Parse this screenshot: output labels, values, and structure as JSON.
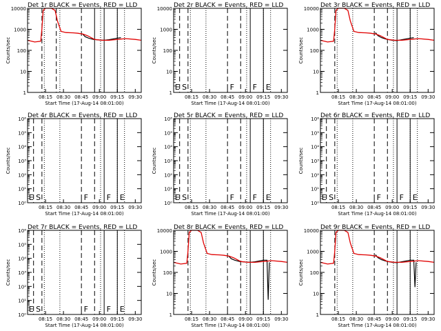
{
  "figure": {
    "title": "",
    "background": "#ffffff"
  },
  "colors": {
    "events": "#000000",
    "lld": "#e00000",
    "axes": "#000000"
  },
  "chart_data": [
    {
      "type": "line",
      "title": "Det 1r BLACK = Events, RED = LLD",
      "xlabel": "Start Time (17-Aug-14 08:01:00)",
      "ylabel": "Counts/sec",
      "scale": "log",
      "ylim": [
        1,
        10000
      ],
      "y_ticks": [
        "1",
        "10",
        "100",
        "1000",
        "10000"
      ],
      "x_ticks": [
        "08:15",
        "08:30",
        "08:45",
        "09:00",
        "09:15",
        "09:30"
      ],
      "xlim": [
        480,
        575
      ],
      "vlines_dashed": [
        492,
        504,
        525
      ],
      "vlines_dotted": [
        494,
        507,
        541,
        555,
        561
      ],
      "vlines_solid": [
        536,
        544,
        555
      ],
      "markers": [],
      "series": [
        {
          "name": "Events",
          "color": "#000000",
          "x": [
            526,
            528,
            531,
            535,
            540,
            544,
            548,
            555,
            558
          ],
          "y": [
            600,
            450,
            380,
            330,
            310,
            300,
            320,
            380,
            400
          ]
        },
        {
          "name": "LLD",
          "color": "#e00000",
          "x": [
            480,
            486,
            491,
            492,
            493,
            495,
            500,
            503,
            505,
            508,
            512,
            518,
            522,
            526,
            530,
            536,
            542,
            548,
            555,
            562,
            570,
            575
          ],
          "y": [
            300,
            250,
            270,
            1000,
            8000,
            10000,
            10000,
            8000,
            2500,
            800,
            700,
            680,
            650,
            600,
            500,
            330,
            300,
            300,
            330,
            360,
            330,
            300
          ]
        }
      ]
    },
    {
      "type": "line",
      "title": "Det 2r BLACK = Events, RED = LLD",
      "xlabel": "Start Time (17-Aug-14 08:01:00)",
      "ylabel": "Counts/sec",
      "scale": "log",
      "ylim": [
        1,
        10000
      ],
      "y_ticks": [
        "1",
        "10",
        "100",
        "1000",
        "10000"
      ],
      "x_ticks": [
        "08:15",
        "08:30",
        "08:45",
        "09:00",
        "09:15",
        "09:30"
      ],
      "xlim": [
        480,
        575
      ],
      "vlines_dashed": [
        485,
        492,
        525,
        536
      ],
      "vlines_dotted": [
        494,
        507,
        541,
        555,
        561
      ],
      "vlines_solid": [
        544,
        555
      ],
      "markers": [
        {
          "label": "E",
          "x": 481
        },
        {
          "label": "S",
          "x": 487
        },
        {
          "label": "F",
          "x": 527
        },
        {
          "label": "F",
          "x": 546
        },
        {
          "label": "E",
          "x": 557
        }
      ],
      "series": []
    },
    {
      "type": "line",
      "title": "Det 3r BLACK = Events, RED = LLD",
      "xlabel": "Start Time (17-Aug-14 08:01:00)",
      "ylabel": "Counts/sec",
      "scale": "log",
      "ylim": [
        1,
        10000
      ],
      "y_ticks": [
        "1",
        "10",
        "100",
        "1000",
        "10000"
      ],
      "x_ticks": [
        "08:15",
        "08:30",
        "08:45",
        "09:00",
        "09:15",
        "09:30"
      ],
      "xlim": [
        480,
        575
      ],
      "vlines_dashed": [
        492,
        525,
        536
      ],
      "vlines_dotted": [
        494,
        507,
        541,
        555,
        561
      ],
      "vlines_solid": [
        544,
        555
      ],
      "markers": [],
      "series": [
        {
          "name": "Events",
          "color": "#000000",
          "x": [
            526,
            528,
            531,
            535,
            540,
            544,
            548,
            555,
            558
          ],
          "y": [
            700,
            500,
            400,
            340,
            300,
            290,
            320,
            380,
            400
          ]
        },
        {
          "name": "LLD",
          "color": "#e00000",
          "x": [
            480,
            486,
            491,
            492,
            493,
            495,
            500,
            503,
            505,
            508,
            512,
            518,
            522,
            526,
            530,
            536,
            542,
            548,
            555,
            562,
            570,
            575
          ],
          "y": [
            300,
            250,
            270,
            1000,
            8000,
            10000,
            10000,
            8000,
            2500,
            800,
            700,
            680,
            650,
            600,
            500,
            330,
            300,
            300,
            330,
            360,
            330,
            300
          ]
        }
      ]
    },
    {
      "type": "line",
      "title": "Det 4r BLACK = Events, RED = LLD",
      "xlabel": "Start Time (17-Aug-14 08:01:00)",
      "ylabel": "Counts/sec",
      "scale": "log",
      "ylim": [
        1,
        1000000
      ],
      "y_ticks": [
        "10⁰",
        "10¹",
        "10²",
        "10³",
        "10⁴",
        "10⁵",
        "10⁶"
      ],
      "x_ticks": [
        "08:15",
        "08:30",
        "08:45",
        "09:00",
        "09:15",
        "09:30"
      ],
      "xlim": [
        480,
        575
      ],
      "vlines_dashed": [
        485,
        492,
        525,
        536
      ],
      "vlines_dotted": [
        494,
        507,
        541,
        555,
        561
      ],
      "vlines_solid": [
        544,
        555
      ],
      "markers": [
        {
          "label": "E",
          "x": 481
        },
        {
          "label": "S",
          "x": 487
        },
        {
          "label": "F",
          "x": 527
        },
        {
          "label": "F",
          "x": 546
        },
        {
          "label": "E",
          "x": 557
        }
      ],
      "series": []
    },
    {
      "type": "line",
      "title": "Det 5r BLACK = Events, RED = LLD",
      "xlabel": "Start Time (17-Aug-14 08:01:00)",
      "ylabel": "Counts/sec",
      "scale": "log",
      "ylim": [
        1,
        1000000
      ],
      "y_ticks": [
        "10⁰",
        "10¹",
        "10²",
        "10³",
        "10⁴",
        "10⁵",
        "10⁶"
      ],
      "x_ticks": [
        "08:15",
        "08:30",
        "08:45",
        "09:00",
        "09:15",
        "09:30"
      ],
      "xlim": [
        480,
        575
      ],
      "vlines_dashed": [
        485,
        492,
        525,
        536
      ],
      "vlines_dotted": [
        494,
        507,
        541,
        555,
        561
      ],
      "vlines_solid": [
        544,
        555
      ],
      "markers": [
        {
          "label": "E",
          "x": 481
        },
        {
          "label": "S",
          "x": 487
        },
        {
          "label": "F",
          "x": 527
        },
        {
          "label": "F",
          "x": 546
        },
        {
          "label": "E",
          "x": 557
        }
      ],
      "series": []
    },
    {
      "type": "line",
      "title": "Det 6r BLACK = Events, RED = LLD",
      "xlabel": "Start Time (17-Aug-14 08:01:00)",
      "ylabel": "Counts/sec",
      "scale": "log",
      "ylim": [
        1,
        1000000
      ],
      "y_ticks": [
        "10⁰",
        "10¹",
        "10²",
        "10³",
        "10⁴",
        "10⁵",
        "10⁶"
      ],
      "x_ticks": [
        "08:15",
        "08:30",
        "08:45",
        "09:00",
        "09:15",
        "09:30"
      ],
      "xlim": [
        480,
        575
      ],
      "vlines_dashed": [
        485,
        492,
        525,
        536
      ],
      "vlines_dotted": [
        494,
        507,
        541,
        555,
        561
      ],
      "vlines_solid": [
        544,
        555
      ],
      "markers": [
        {
          "label": "E",
          "x": 481
        },
        {
          "label": "S",
          "x": 487
        },
        {
          "label": "F",
          "x": 527
        },
        {
          "label": "F",
          "x": 546
        },
        {
          "label": "E",
          "x": 557
        }
      ],
      "series": []
    },
    {
      "type": "line",
      "title": "Det 7r BLACK = Events, RED = LLD",
      "xlabel": "Start Time (17-Aug-14 08:01:00)",
      "ylabel": "Counts/sec",
      "scale": "log",
      "ylim": [
        1,
        1000000
      ],
      "y_ticks": [
        "10⁰",
        "10¹",
        "10²",
        "10³",
        "10⁴",
        "10⁵",
        "10⁶"
      ],
      "x_ticks": [
        "08:15",
        "08:30",
        "08:45",
        "09:00",
        "09:15",
        "09:30"
      ],
      "xlim": [
        480,
        575
      ],
      "vlines_dashed": [
        485,
        492,
        525,
        536
      ],
      "vlines_dotted": [
        494,
        507,
        541,
        555,
        561
      ],
      "vlines_solid": [
        544,
        555
      ],
      "markers": [
        {
          "label": "E",
          "x": 481
        },
        {
          "label": "S",
          "x": 487
        },
        {
          "label": "F",
          "x": 527
        },
        {
          "label": "F",
          "x": 546
        },
        {
          "label": "E",
          "x": 557
        }
      ],
      "series": []
    },
    {
      "type": "line",
      "title": "Det 8r BLACK = Events, RED = LLD",
      "xlabel": "Start Time (17-Aug-14 08:01:00)",
      "ylabel": "Counts/sec",
      "scale": "log",
      "ylim": [
        1,
        10000
      ],
      "y_ticks": [
        "1",
        "10",
        "100",
        "1000",
        "10000"
      ],
      "x_ticks": [
        "08:15",
        "08:30",
        "08:45",
        "09:00",
        "09:15",
        "09:30"
      ],
      "xlim": [
        480,
        575
      ],
      "vlines_dashed": [
        492,
        525,
        536
      ],
      "vlines_dotted": [
        494,
        507,
        541,
        555,
        561
      ],
      "vlines_solid": [
        544,
        555
      ],
      "markers": [],
      "series": [
        {
          "name": "Events",
          "color": "#000000",
          "x": [
            526,
            528,
            531,
            535,
            540,
            544,
            548,
            555,
            558,
            559,
            560
          ],
          "y": [
            600,
            450,
            380,
            330,
            310,
            300,
            320,
            380,
            380,
            5,
            300
          ]
        },
        {
          "name": "LLD",
          "color": "#e00000",
          "x": [
            480,
            486,
            491,
            492,
            493,
            495,
            500,
            503,
            505,
            508,
            512,
            518,
            522,
            526,
            530,
            536,
            542,
            548,
            555,
            562,
            570,
            575
          ],
          "y": [
            300,
            250,
            270,
            1000,
            8000,
            10000,
            10000,
            8000,
            2500,
            800,
            700,
            680,
            650,
            600,
            500,
            330,
            300,
            300,
            330,
            360,
            330,
            300
          ]
        }
      ]
    },
    {
      "type": "line",
      "title": "Det 9r BLACK = Events, RED = LLD",
      "xlabel": "Start Time (17-Aug-14 08:01:00)",
      "ylabel": "Counts/sec",
      "scale": "log",
      "ylim": [
        1,
        10000
      ],
      "y_ticks": [
        "1",
        "10",
        "100",
        "1000",
        "10000"
      ],
      "x_ticks": [
        "08:15",
        "08:30",
        "08:45",
        "09:00",
        "09:15",
        "09:30"
      ],
      "xlim": [
        480,
        575
      ],
      "vlines_dashed": [
        492,
        525,
        536
      ],
      "vlines_dotted": [
        494,
        507,
        541,
        555,
        561
      ],
      "vlines_solid": [
        544,
        555
      ],
      "markers": [],
      "series": [
        {
          "name": "Events",
          "color": "#000000",
          "x": [
            526,
            528,
            531,
            535,
            540,
            544,
            548,
            555,
            558,
            559,
            560
          ],
          "y": [
            700,
            500,
            400,
            340,
            300,
            290,
            320,
            380,
            380,
            20,
            300
          ]
        },
        {
          "name": "LLD",
          "color": "#e00000",
          "x": [
            480,
            486,
            491,
            492,
            493,
            495,
            500,
            503,
            505,
            508,
            512,
            518,
            522,
            526,
            530,
            536,
            542,
            548,
            555,
            562,
            570,
            575
          ],
          "y": [
            300,
            250,
            270,
            1000,
            8000,
            10000,
            10000,
            8000,
            2500,
            800,
            700,
            680,
            650,
            600,
            500,
            330,
            300,
            300,
            330,
            360,
            330,
            300
          ]
        }
      ]
    }
  ]
}
